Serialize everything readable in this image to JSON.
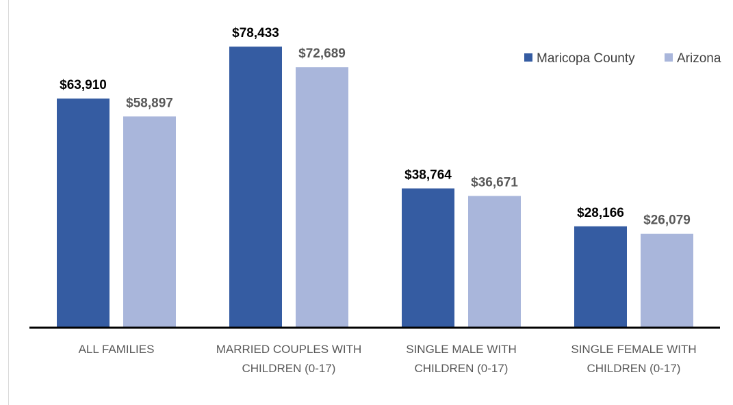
{
  "chart_data": {
    "type": "bar",
    "categories": [
      [
        "ALL FAMILIES"
      ],
      [
        "MARRIED COUPLES WITH",
        "CHILDREN (0-17)"
      ],
      [
        "SINGLE MALE WITH",
        "CHILDREN (0-17)"
      ],
      [
        "SINGLE FEMALE WITH",
        "CHILDREN (0-17)"
      ]
    ],
    "series": [
      {
        "name": "Maricopa County",
        "color": "#355CA2",
        "label_color": "#000000",
        "values": [
          63910,
          78433,
          38764,
          28166
        ],
        "labels": [
          "$63,910",
          "$78,433",
          "$38,764",
          "$28,166"
        ]
      },
      {
        "name": "Arizona",
        "color": "#A9B6DB",
        "label_color": "#595959",
        "values": [
          58897,
          72689,
          36671,
          26079
        ],
        "labels": [
          "$58,897",
          "$72,689",
          "$36,671",
          "$26,079"
        ]
      }
    ],
    "ylim": [
      0,
      80000
    ],
    "legend_position": "top-right",
    "grid": false
  }
}
